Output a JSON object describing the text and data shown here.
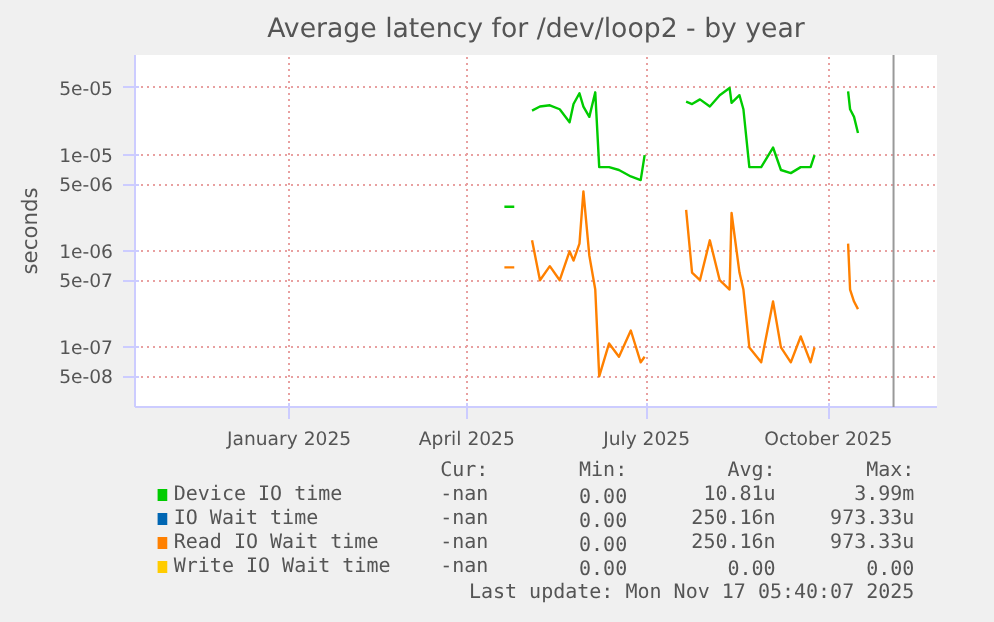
{
  "chart_data": {
    "type": "line",
    "title": "Average latency for /dev/loop2 - by year",
    "ylabel": "seconds",
    "log": "y",
    "grid": true,
    "legend": "bottom",
    "line_style": "solid",
    "marker": "none",
    "xlim": [
      "2024-10-15",
      "2025-11-25"
    ],
    "xticks": [
      {
        "value": "2025-01-01",
        "label": "January 2025"
      },
      {
        "value": "2025-04-01",
        "label": "April 2025"
      },
      {
        "value": "2025-07-01",
        "label": "July 2025"
      },
      {
        "value": "2025-10-01",
        "label": "October 2025"
      }
    ],
    "ylim": [
      2.4e-08,
      0.00011
    ],
    "yticks": [
      {
        "value": 5e-08,
        "label": "5e-08"
      },
      {
        "value": 1e-07,
        "label": "1e-07"
      },
      {
        "value": 5e-07,
        "label": "5e-07"
      },
      {
        "value": 1e-06,
        "label": "1e-06"
      },
      {
        "value": 5e-06,
        "label": "5e-06"
      },
      {
        "value": 1e-05,
        "label": "1e-05"
      },
      {
        "value": 5e-05,
        "label": "5e-05"
      }
    ],
    "x": [
      "2025-04-20",
      "2025-04-25",
      "2025-04-28",
      "2025-05-04",
      "2025-05-08",
      "2025-05-13",
      "2025-05-18",
      "2025-05-23",
      "2025-05-25",
      "2025-05-28",
      "2025-05-30",
      "2025-06-02",
      "2025-06-05",
      "2025-06-07",
      "2025-06-12",
      "2025-06-17",
      "2025-06-23",
      "2025-06-28",
      "2025-06-30",
      "2025-07-10",
      "2025-07-21",
      "2025-07-24",
      "2025-07-28",
      "2025-08-02",
      "2025-08-07",
      "2025-08-12",
      "2025-08-13",
      "2025-08-17",
      "2025-08-19",
      "2025-08-22",
      "2025-08-28",
      "2025-09-03",
      "2025-09-07",
      "2025-09-12",
      "2025-09-17",
      "2025-09-22",
      "2025-09-24",
      "2025-10-03",
      "2025-10-11",
      "2025-10-12",
      "2025-10-14",
      "2025-10-16"
    ],
    "series": [
      {
        "name": "Device IO time",
        "color": "#00cc00",
        "values": [
          2.9e-06,
          2.9e-06,
          null,
          2.9e-05,
          3.2e-05,
          3.3e-05,
          3e-05,
          2.2e-05,
          3.4e-05,
          4.4e-05,
          3.2e-05,
          2.5e-05,
          4.5e-05,
          7.5e-06,
          7.5e-06,
          7e-06,
          6e-06,
          5.5e-06,
          1e-05,
          null,
          3.6e-05,
          3.4e-05,
          3.8e-05,
          3.2e-05,
          4.2e-05,
          5e-05,
          3.5e-05,
          4.2e-05,
          3e-05,
          7.5e-06,
          7.5e-06,
          1.2e-05,
          7e-06,
          6.5e-06,
          7.5e-06,
          7.5e-06,
          1e-05,
          null,
          4.6e-05,
          3e-05,
          2.5e-05,
          1.7e-05
        ]
      },
      {
        "name": "IO Wait time",
        "color": "#0066b3",
        "values": [
          null,
          null,
          null,
          null,
          null,
          null,
          null,
          null,
          null,
          null,
          null,
          null,
          null,
          null,
          null,
          null,
          null,
          null,
          null,
          null,
          null,
          null,
          null,
          null,
          null,
          null,
          null,
          null,
          null,
          null,
          null,
          null,
          null,
          null,
          null,
          null,
          null,
          null,
          null,
          null,
          null,
          null
        ]
      },
      {
        "name": "Read IO Wait time",
        "color": "#ff8000",
        "values": [
          6.8e-07,
          6.8e-07,
          null,
          1.3e-06,
          5e-07,
          7e-07,
          5e-07,
          1e-06,
          8e-07,
          1.2e-06,
          4.2e-06,
          9e-07,
          4e-07,
          5e-08,
          1.1e-07,
          8e-08,
          1.5e-07,
          7e-08,
          8e-08,
          null,
          2.7e-06,
          6e-07,
          5e-07,
          1.3e-06,
          5e-07,
          4e-07,
          2.5e-06,
          6e-07,
          4e-07,
          1e-07,
          7e-08,
          3e-07,
          1e-07,
          7e-08,
          1.3e-07,
          7e-08,
          1e-07,
          null,
          1.2e-06,
          4e-07,
          3e-07,
          2.5e-07
        ]
      },
      {
        "name": "Write IO Wait time",
        "color": "#ffcc00",
        "values": [
          null,
          null,
          null,
          null,
          null,
          null,
          null,
          null,
          null,
          null,
          null,
          null,
          null,
          null,
          null,
          null,
          null,
          null,
          null,
          null,
          null,
          null,
          null,
          null,
          null,
          null,
          null,
          null,
          null,
          null,
          null,
          null,
          null,
          null,
          null,
          null,
          null,
          null,
          null,
          null,
          null,
          null
        ]
      }
    ],
    "ref_lines": [
      {
        "axis": "x",
        "value": "2025-11-03",
        "color": "#999999"
      }
    ],
    "annotations": [
      "Cur:",
      "Min:",
      "Avg:",
      "Max:",
      "-nan",
      "0.00",
      "10.81u",
      "3.99m",
      "-nan",
      "0.00",
      "250.16n",
      "973.33u",
      "-nan",
      "0.00",
      "250.16n",
      "973.33u",
      "-nan",
      "0.00",
      "0.00",
      "0.00",
      "Last update: Mon Nov 17 05:40:07 2025"
    ]
  }
}
